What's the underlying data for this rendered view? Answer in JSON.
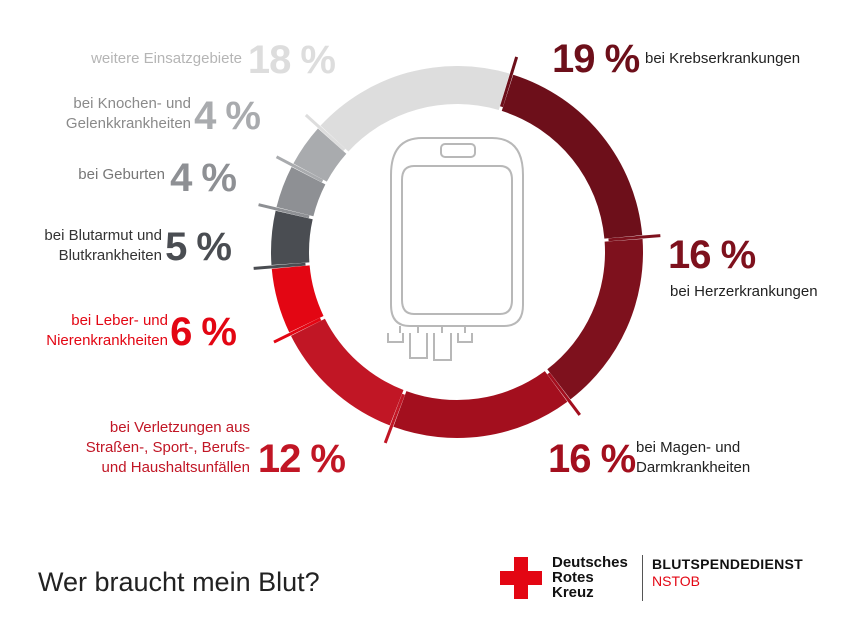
{
  "title": "Wer braucht mein Blut?",
  "logo": {
    "org_lines": [
      "Deutsches",
      "Rotes",
      "Kreuz"
    ],
    "service": "BLUTSPENDEDIENST",
    "branch": "NSTOB",
    "cross_color": "#e30613"
  },
  "icon": "blood-bag-icon",
  "chart_data": {
    "type": "donut",
    "unit": "%",
    "segments": [
      {
        "label": "bei Krebserkrankungen",
        "value": 19,
        "pct_text": "19 %",
        "color": "#6d0f1a",
        "label_color": "#222222",
        "pct_color": "#6d0f1a"
      },
      {
        "label": "bei Herzerkrankungen",
        "value": 16,
        "pct_text": "16 %",
        "color": "#7e111d",
        "label_color": "#222222",
        "pct_color": "#7e111d"
      },
      {
        "label": "bei Magen- und Darmkrankheiten",
        "value": 16,
        "pct_text": "16 %",
        "color": "#a30f1e",
        "label_color": "#222222",
        "pct_color": "#a30f1e"
      },
      {
        "label": "bei Verletzungen aus Straßen-, Sport-, Berufs- und Haushaltsunfällen",
        "value": 12,
        "pct_text": "12 %",
        "color": "#c11625",
        "label_color": "#c11625",
        "pct_color": "#c11625"
      },
      {
        "label": "bei Leber- und Nierenkrankheiten",
        "value": 6,
        "pct_text": "6 %",
        "color": "#e30613",
        "label_color": "#e30613",
        "pct_color": "#e30613"
      },
      {
        "label": "bei Blutarmut und Blutkrankheiten",
        "value": 5,
        "pct_text": "5 %",
        "color": "#4a4d52",
        "label_color": "#333333",
        "pct_color": "#4a4d52"
      },
      {
        "label": "bei Geburten",
        "value": 4,
        "pct_text": "4 %",
        "color": "#8e9094",
        "label_color": "#777777",
        "pct_color": "#8e9094"
      },
      {
        "label": "bei Knochen- und Gelenkkrankheiten",
        "value": 4,
        "pct_text": "4 %",
        "color": "#a9abae",
        "label_color": "#8a8a8a",
        "pct_color": "#a9abae"
      },
      {
        "label": "weitere Einsatzgebiete",
        "value": 18,
        "pct_text": "18 %",
        "color": "#dddddd",
        "label_color": "#b5b5b5",
        "pct_color": "#dddddd"
      }
    ]
  }
}
